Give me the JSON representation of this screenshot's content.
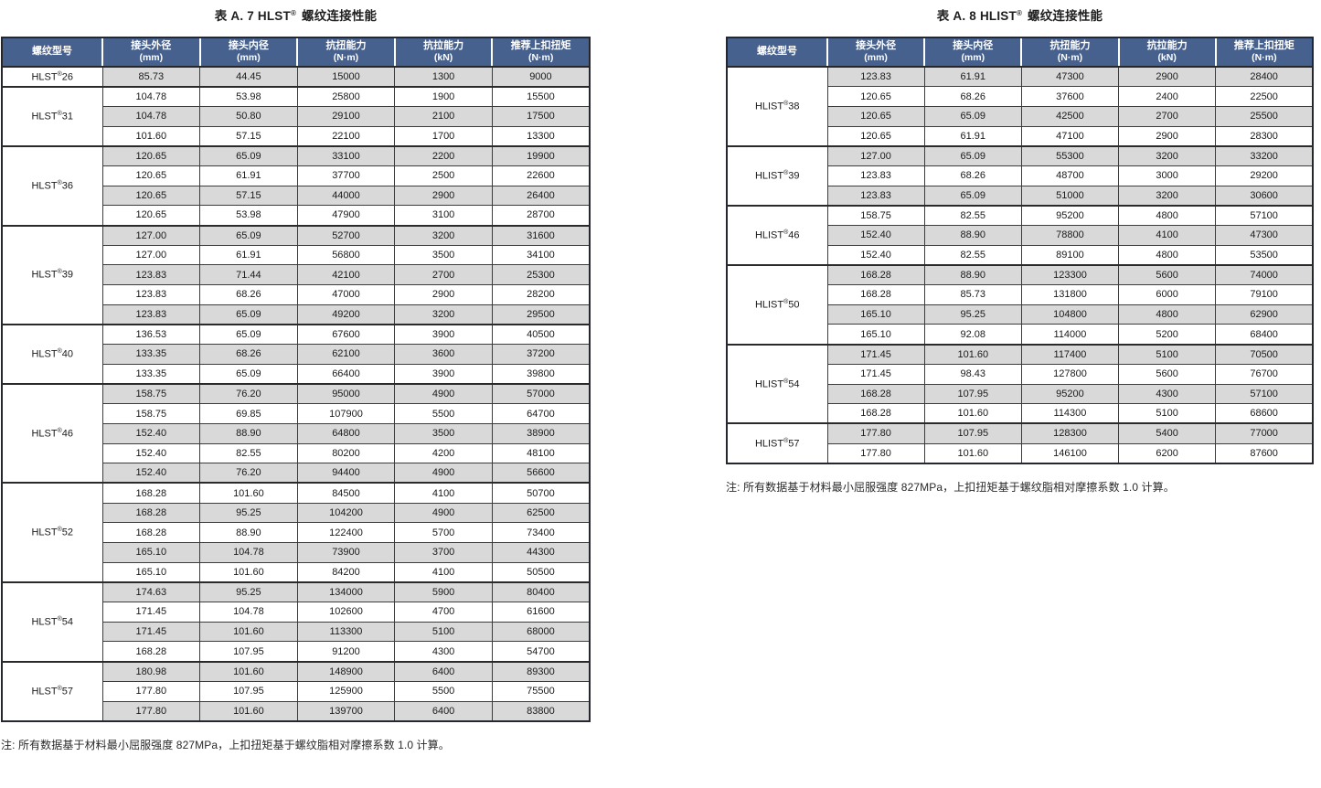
{
  "reg_mark": "®",
  "colors": {
    "header_bg": "#47618e",
    "header_text": "#ffffff",
    "row_alt_bg": "#d9d9d9",
    "border_dark": "#24272e",
    "cell_border": "#3c3c3c"
  },
  "header_columns": [
    {
      "label": "螺纹型号",
      "unit": ""
    },
    {
      "label": "接头外径",
      "unit": "(mm)"
    },
    {
      "label": "接头内径",
      "unit": "(mm)"
    },
    {
      "label": "抗扭能力",
      "unit": "(N·m)"
    },
    {
      "label": "抗拉能力",
      "unit": "(kN)"
    },
    {
      "label": "推荐上扣扭矩",
      "unit": "(N·m)"
    }
  ],
  "note": "注: 所有数据基于材料最小屈服强度 827MPa，上扣扭矩基于螺纹脂相对摩擦系数 1.0 计算。",
  "tables": [
    {
      "title": {
        "prefix": "表 A. 7 HLST",
        "suffix": " 螺纹连接性能"
      },
      "groups": [
        {
          "series": "HLST",
          "size": "26",
          "rows": [
            [
              "85.73",
              "44.45",
              "15000",
              "1300",
              "9000"
            ]
          ]
        },
        {
          "series": "HLST",
          "size": "31",
          "rows": [
            [
              "104.78",
              "53.98",
              "25800",
              "1900",
              "15500"
            ],
            [
              "104.78",
              "50.80",
              "29100",
              "2100",
              "17500"
            ],
            [
              "101.60",
              "57.15",
              "22100",
              "1700",
              "13300"
            ]
          ]
        },
        {
          "series": "HLST",
          "size": "36",
          "rows": [
            [
              "120.65",
              "65.09",
              "33100",
              "2200",
              "19900"
            ],
            [
              "120.65",
              "61.91",
              "37700",
              "2500",
              "22600"
            ],
            [
              "120.65",
              "57.15",
              "44000",
              "2900",
              "26400"
            ],
            [
              "120.65",
              "53.98",
              "47900",
              "3100",
              "28700"
            ]
          ]
        },
        {
          "series": "HLST",
          "size": "39",
          "rows": [
            [
              "127.00",
              "65.09",
              "52700",
              "3200",
              "31600"
            ],
            [
              "127.00",
              "61.91",
              "56800",
              "3500",
              "34100"
            ],
            [
              "123.83",
              "71.44",
              "42100",
              "2700",
              "25300"
            ],
            [
              "123.83",
              "68.26",
              "47000",
              "2900",
              "28200"
            ],
            [
              "123.83",
              "65.09",
              "49200",
              "3200",
              "29500"
            ]
          ]
        },
        {
          "series": "HLST",
          "size": "40",
          "rows": [
            [
              "136.53",
              "65.09",
              "67600",
              "3900",
              "40500"
            ],
            [
              "133.35",
              "68.26",
              "62100",
              "3600",
              "37200"
            ],
            [
              "133.35",
              "65.09",
              "66400",
              "3900",
              "39800"
            ]
          ]
        },
        {
          "series": "HLST",
          "size": "46",
          "rows": [
            [
              "158.75",
              "76.20",
              "95000",
              "4900",
              "57000"
            ],
            [
              "158.75",
              "69.85",
              "107900",
              "5500",
              "64700"
            ],
            [
              "152.40",
              "88.90",
              "64800",
              "3500",
              "38900"
            ],
            [
              "152.40",
              "82.55",
              "80200",
              "4200",
              "48100"
            ],
            [
              "152.40",
              "76.20",
              "94400",
              "4900",
              "56600"
            ]
          ]
        },
        {
          "series": "HLST",
          "size": "52",
          "rows": [
            [
              "168.28",
              "101.60",
              "84500",
              "4100",
              "50700"
            ],
            [
              "168.28",
              "95.25",
              "104200",
              "4900",
              "62500"
            ],
            [
              "168.28",
              "88.90",
              "122400",
              "5700",
              "73400"
            ],
            [
              "165.10",
              "104.78",
              "73900",
              "3700",
              "44300"
            ],
            [
              "165.10",
              "101.60",
              "84200",
              "4100",
              "50500"
            ]
          ]
        },
        {
          "series": "HLST",
          "size": "54",
          "rows": [
            [
              "174.63",
              "95.25",
              "134000",
              "5900",
              "80400"
            ],
            [
              "171.45",
              "104.78",
              "102600",
              "4700",
              "61600"
            ],
            [
              "171.45",
              "101.60",
              "113300",
              "5100",
              "68000"
            ],
            [
              "168.28",
              "107.95",
              "91200",
              "4300",
              "54700"
            ]
          ]
        },
        {
          "series": "HLST",
          "size": "57",
          "rows": [
            [
              "180.98",
              "101.60",
              "148900",
              "6400",
              "89300"
            ],
            [
              "177.80",
              "107.95",
              "125900",
              "5500",
              "75500"
            ],
            [
              "177.80",
              "101.60",
              "139700",
              "6400",
              "83800"
            ]
          ]
        }
      ]
    },
    {
      "title": {
        "prefix": "表 A. 8 HLIST",
        "suffix": " 螺纹连接性能"
      },
      "groups": [
        {
          "series": "HLIST",
          "size": "38",
          "rows": [
            [
              "123.83",
              "61.91",
              "47300",
              "2900",
              "28400"
            ],
            [
              "120.65",
              "68.26",
              "37600",
              "2400",
              "22500"
            ],
            [
              "120.65",
              "65.09",
              "42500",
              "2700",
              "25500"
            ],
            [
              "120.65",
              "61.91",
              "47100",
              "2900",
              "28300"
            ]
          ]
        },
        {
          "series": "HLIST",
          "size": "39",
          "rows": [
            [
              "127.00",
              "65.09",
              "55300",
              "3200",
              "33200"
            ],
            [
              "123.83",
              "68.26",
              "48700",
              "3000",
              "29200"
            ],
            [
              "123.83",
              "65.09",
              "51000",
              "3200",
              "30600"
            ]
          ]
        },
        {
          "series": "HLIST",
          "size": "46",
          "rows": [
            [
              "158.75",
              "82.55",
              "95200",
              "4800",
              "57100"
            ],
            [
              "152.40",
              "88.90",
              "78800",
              "4100",
              "47300"
            ],
            [
              "152.40",
              "82.55",
              "89100",
              "4800",
              "53500"
            ]
          ]
        },
        {
          "series": "HLIST",
          "size": "50",
          "rows": [
            [
              "168.28",
              "88.90",
              "123300",
              "5600",
              "74000"
            ],
            [
              "168.28",
              "85.73",
              "131800",
              "6000",
              "79100"
            ],
            [
              "165.10",
              "95.25",
              "104800",
              "4800",
              "62900"
            ],
            [
              "165.10",
              "92.08",
              "114000",
              "5200",
              "68400"
            ]
          ]
        },
        {
          "series": "HLIST",
          "size": "54",
          "rows": [
            [
              "171.45",
              "101.60",
              "117400",
              "5100",
              "70500"
            ],
            [
              "171.45",
              "98.43",
              "127800",
              "5600",
              "76700"
            ],
            [
              "168.28",
              "107.95",
              "95200",
              "4300",
              "57100"
            ],
            [
              "168.28",
              "101.60",
              "114300",
              "5100",
              "68600"
            ]
          ]
        },
        {
          "series": "HLIST",
          "size": "57",
          "rows": [
            [
              "177.80",
              "107.95",
              "128300",
              "5400",
              "77000"
            ],
            [
              "177.80",
              "101.60",
              "146100",
              "6200",
              "87600"
            ]
          ]
        }
      ]
    }
  ]
}
